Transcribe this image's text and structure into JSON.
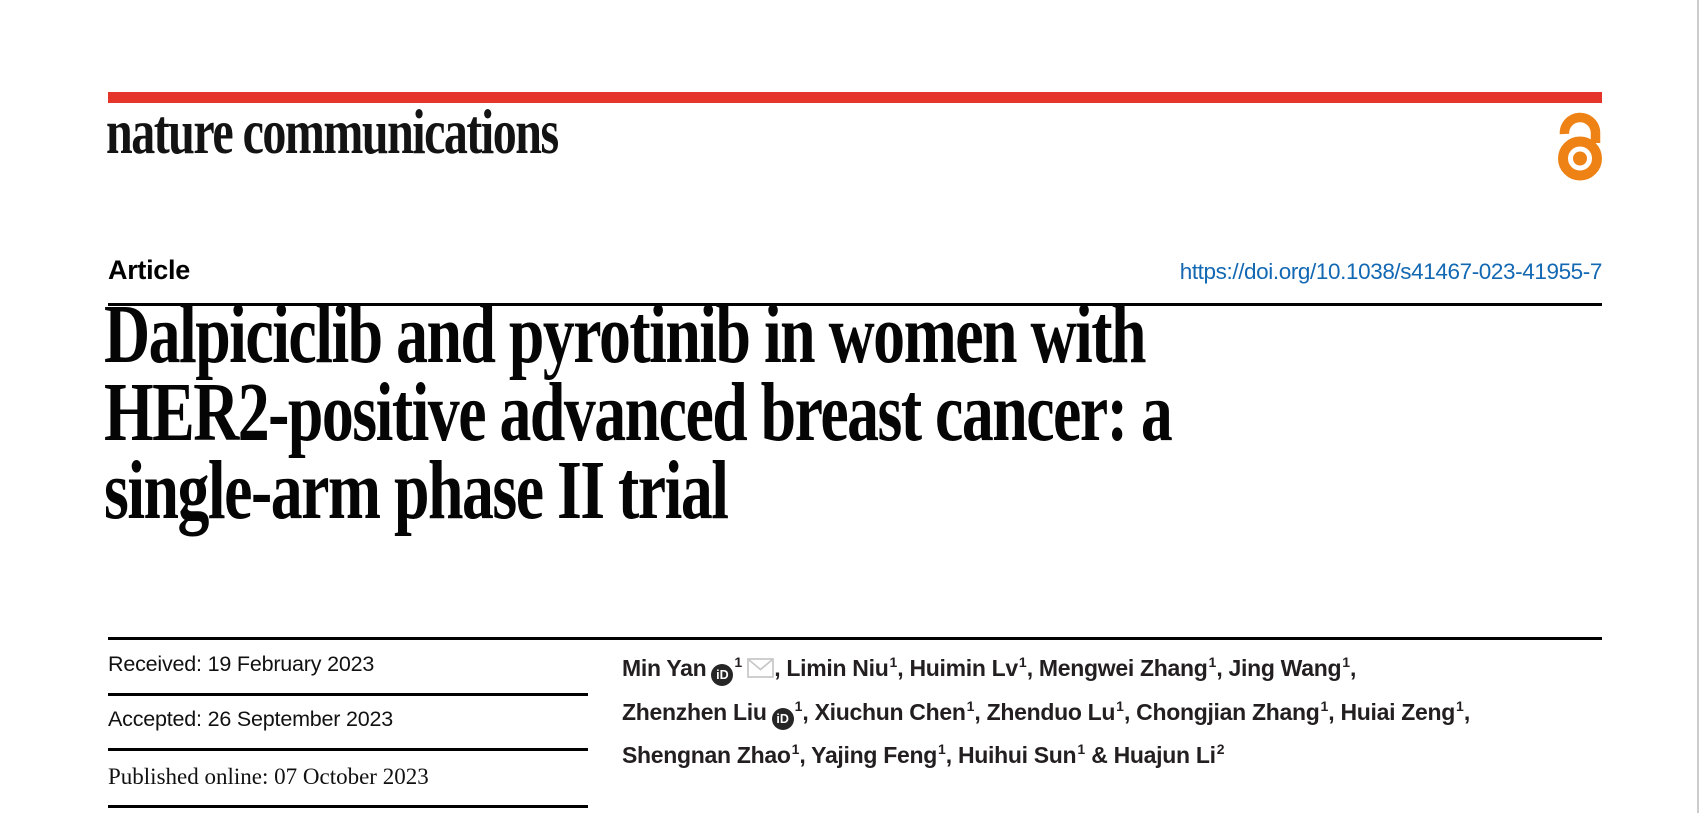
{
  "brand": {
    "wordmark": "nature communications",
    "accent_bar_color": "#e5352b",
    "open_access_color": "#ef8214"
  },
  "article": {
    "type_label": "Article",
    "doi": "https://doi.org/10.1038/s41467-023-41955-7",
    "doi_color": "#1268b3",
    "title_lines": [
      "Dalpiciclib and pyrotinib in women with",
      "HER2-positive advanced breast cancer: a",
      "single-arm phase II trial"
    ]
  },
  "dates": {
    "rows": [
      {
        "label": "Received:",
        "value": "19 February 2023"
      },
      {
        "label": "Accepted:",
        "value": "26 September 2023"
      },
      {
        "label": "Published online:",
        "value": "07 October 2023"
      }
    ]
  },
  "authors": {
    "lines": [
      [
        {
          "name": "Min Yan",
          "orcid": true,
          "sup": "1",
          "email": true,
          "after": ", "
        },
        {
          "name": "Limin Niu",
          "sup": "1",
          "after": ", "
        },
        {
          "name": "Huimin Lv",
          "sup": "1",
          "after": ", "
        },
        {
          "name": "Mengwei Zhang",
          "sup": "1",
          "after": ", "
        },
        {
          "name": "Jing Wang",
          "sup": "1",
          "after": ","
        }
      ],
      [
        {
          "name": "Zhenzhen Liu",
          "orcid": true,
          "sup": "1",
          "after": ", "
        },
        {
          "name": "Xiuchun Chen",
          "sup": "1",
          "after": ", "
        },
        {
          "name": "Zhenduo Lu",
          "sup": "1",
          "after": ", "
        },
        {
          "name": "Chongjian Zhang",
          "sup": "1",
          "after": ", "
        },
        {
          "name": "Huiai Zeng",
          "sup": "1",
          "after": ","
        }
      ],
      [
        {
          "name": "Shengnan Zhao",
          "sup": "1",
          "after": ", "
        },
        {
          "name": "Yajing Feng",
          "sup": "1",
          "after": ", "
        },
        {
          "name": "Huihui Sun",
          "sup": "1",
          "after": " & "
        },
        {
          "name": "Huajun Li",
          "sup": "2",
          "after": ""
        }
      ]
    ]
  },
  "icons": {
    "orcid_glyph": "iD",
    "orcid_name": "orcid-icon",
    "email_name": "email-icon",
    "open_access_name": "open-access-padlock-icon"
  }
}
